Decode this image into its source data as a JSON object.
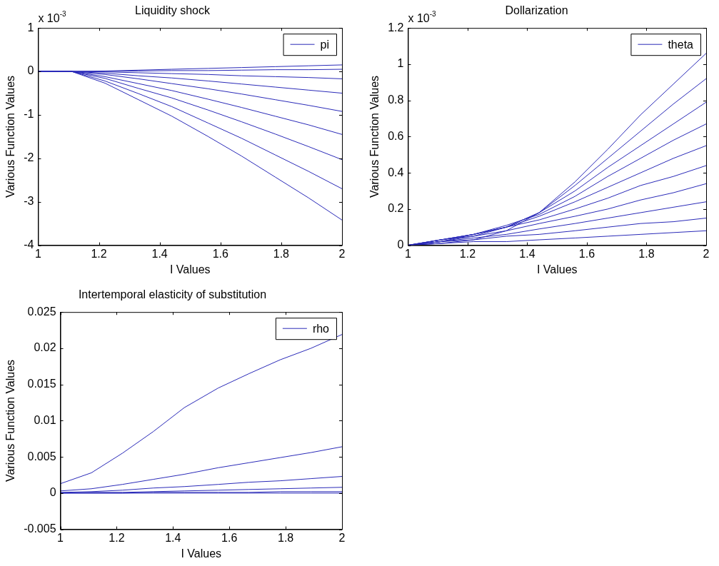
{
  "chart_data": [
    {
      "type": "line",
      "title": "Liquidity shock",
      "xlabel": "I Values",
      "ylabel": "Various Function Values",
      "annotations": [
        "x 10$^{-3}$"
      ],
      "x": [
        1,
        1.11,
        1.22,
        1.33,
        1.44,
        1.56,
        1.67,
        1.78,
        1.89,
        2
      ],
      "xlim": [
        1,
        2
      ],
      "xticks": [
        1,
        1.2,
        1.4,
        1.6,
        1.8,
        2
      ],
      "ylim": [
        -4,
        1
      ],
      "yticks": [
        -4,
        -3,
        -2,
        -1,
        0,
        1
      ],
      "grid": false,
      "legend": "top right",
      "line_style": "solid",
      "marker": "none",
      "series": [
        {
          "name": "pi",
          "color": "#2a2ab8",
          "values": [
            0,
            0,
            0.01,
            0.03,
            0.05,
            0.07,
            0.09,
            0.11,
            0.13,
            0.15
          ]
        },
        {
          "color": "#2a2ab8",
          "values": [
            0,
            0,
            0,
            0.01,
            0.02,
            0.02,
            0.03,
            0.04,
            0.04,
            0.05
          ]
        },
        {
          "color": "#2a2ab8",
          "values": [
            0,
            0,
            -0.01,
            -0.03,
            -0.05,
            -0.07,
            -0.1,
            -0.12,
            -0.14,
            -0.17
          ]
        },
        {
          "color": "#2a2ab8",
          "values": [
            0,
            0,
            -0.04,
            -0.1,
            -0.15,
            -0.22,
            -0.29,
            -0.36,
            -0.43,
            -0.5
          ]
        },
        {
          "color": "#2a2ab8",
          "values": [
            0,
            0,
            -0.07,
            -0.17,
            -0.28,
            -0.4,
            -0.52,
            -0.65,
            -0.78,
            -0.92
          ]
        },
        {
          "color": "#2a2ab8",
          "values": [
            0,
            0,
            -0.12,
            -0.28,
            -0.44,
            -0.64,
            -0.83,
            -1.03,
            -1.23,
            -1.45
          ]
        },
        {
          "color": "#2a2ab8",
          "values": [
            0,
            0,
            -0.16,
            -0.39,
            -0.61,
            -0.89,
            -1.16,
            -1.44,
            -1.73,
            -2.03
          ]
        },
        {
          "color": "#2a2ab8",
          "values": [
            0,
            0,
            -0.22,
            -0.51,
            -0.81,
            -1.19,
            -1.54,
            -1.92,
            -2.3,
            -2.7
          ]
        },
        {
          "color": "#2a2ab8",
          "values": [
            0,
            0,
            -0.27,
            -0.65,
            -1.03,
            -1.5,
            -1.95,
            -2.43,
            -2.91,
            -3.42
          ]
        }
      ]
    },
    {
      "type": "line",
      "title": "Dollarization",
      "xlabel": "I Values",
      "ylabel": "Various Function Values",
      "annotations": [
        "x 10$^{-3}$"
      ],
      "x": [
        1,
        1.11,
        1.22,
        1.33,
        1.44,
        1.56,
        1.67,
        1.78,
        1.89,
        2
      ],
      "xlim": [
        1,
        2
      ],
      "xticks": [
        1,
        1.2,
        1.4,
        1.6,
        1.8,
        2
      ],
      "ylim": [
        0,
        1.2
      ],
      "yticks": [
        0,
        0.2,
        0.4,
        0.6,
        0.8,
        1,
        1.2
      ],
      "grid": false,
      "legend": "top right",
      "line_style": "solid",
      "marker": "none",
      "series": [
        {
          "name": "theta",
          "color": "#2a2ab8",
          "values": [
            0,
            0.01,
            0.03,
            0.08,
            0.18,
            0.35,
            0.53,
            0.72,
            0.89,
            1.06
          ]
        },
        {
          "color": "#2a2ab8",
          "values": [
            0,
            0.02,
            0.05,
            0.1,
            0.18,
            0.33,
            0.48,
            0.63,
            0.78,
            0.92
          ]
        },
        {
          "color": "#2a2ab8",
          "values": [
            0,
            0.02,
            0.06,
            0.1,
            0.18,
            0.3,
            0.43,
            0.55,
            0.67,
            0.79
          ]
        },
        {
          "color": "#2a2ab8",
          "values": [
            0,
            0.03,
            0.06,
            0.11,
            0.17,
            0.27,
            0.38,
            0.48,
            0.58,
            0.67
          ]
        },
        {
          "color": "#2a2ab8",
          "values": [
            0,
            0.03,
            0.06,
            0.1,
            0.16,
            0.24,
            0.32,
            0.4,
            0.48,
            0.55
          ]
        },
        {
          "color": "#2a2ab8",
          "values": [
            0,
            0.03,
            0.06,
            0.1,
            0.14,
            0.2,
            0.26,
            0.33,
            0.38,
            0.44
          ]
        },
        {
          "color": "#2a2ab8",
          "values": [
            0,
            0.03,
            0.05,
            0.08,
            0.12,
            0.16,
            0.2,
            0.25,
            0.29,
            0.34
          ]
        },
        {
          "color": "#2a2ab8",
          "values": [
            0,
            0.02,
            0.04,
            0.06,
            0.09,
            0.12,
            0.15,
            0.18,
            0.21,
            0.24
          ]
        },
        {
          "color": "#2a2ab8",
          "values": [
            0,
            0.02,
            0.03,
            0.05,
            0.06,
            0.08,
            0.1,
            0.12,
            0.13,
            0.15
          ]
        },
        {
          "color": "#2a2ab8",
          "values": [
            0,
            0.01,
            0.02,
            0.02,
            0.03,
            0.04,
            0.05,
            0.06,
            0.07,
            0.08
          ]
        }
      ]
    },
    {
      "type": "line",
      "title": "Intertemporal elasticity of substitution",
      "xlabel": "I Values",
      "ylabel": "Various Function Values",
      "x": [
        1,
        1.11,
        1.22,
        1.33,
        1.44,
        1.56,
        1.67,
        1.78,
        1.89,
        2
      ],
      "xlim": [
        1,
        2
      ],
      "xticks": [
        1,
        1.2,
        1.4,
        1.6,
        1.8,
        2
      ],
      "ylim": [
        -0.005,
        0.025
      ],
      "yticks": [
        -0.005,
        0,
        0.005,
        0.01,
        0.015,
        0.02,
        0.025
      ],
      "grid": false,
      "legend": "top right",
      "line_style": "solid",
      "marker": "none",
      "series": [
        {
          "name": "rho",
          "color": "#2a2ab8",
          "values": [
            0.0013,
            0.0028,
            0.0055,
            0.0085,
            0.0118,
            0.0145,
            0.0165,
            0.0184,
            0.02,
            0.0219
          ]
        },
        {
          "color": "#2a2ab8",
          "values": [
            0.0003,
            0.0006,
            0.0012,
            0.0019,
            0.0026,
            0.0035,
            0.0042,
            0.0049,
            0.0056,
            0.0064
          ]
        },
        {
          "color": "#2a2ab8",
          "values": [
            0.0001,
            0.0002,
            0.0004,
            0.0007,
            0.0009,
            0.0012,
            0.0015,
            0.0017,
            0.002,
            0.0023
          ]
        },
        {
          "color": "#2a2ab8",
          "values": [
            0,
            0.0001,
            0.0001,
            0.0002,
            0.0003,
            0.0004,
            0.0005,
            0.0006,
            0.0007,
            0.0008
          ]
        },
        {
          "color": "#2a2ab8",
          "values": [
            0,
            0,
            0,
            0.0001,
            0.0001,
            0.0001,
            0.0001,
            0.0002,
            0.0002,
            0.0002
          ]
        },
        {
          "color": "#2a2ab8",
          "values": [
            0,
            0,
            0,
            0,
            0,
            0,
            0,
            0,
            0,
            0
          ]
        }
      ]
    }
  ]
}
